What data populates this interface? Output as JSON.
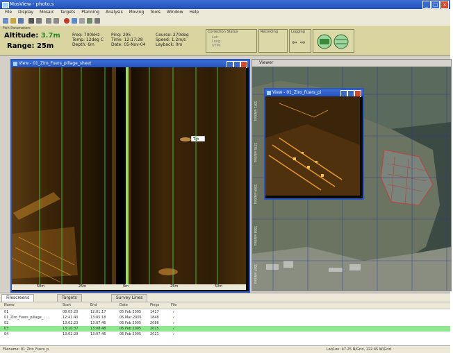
{
  "app": {
    "title": "MosView - photo.s"
  },
  "menu": {
    "items": [
      "File",
      "Display",
      "Mosaic",
      "Targets",
      "Planning",
      "Analysis",
      "Moving",
      "Tools",
      "Window",
      "Help"
    ]
  },
  "params": {
    "panel_label": "Fish Parameters",
    "altitude_label": "Altitude:",
    "altitude_value": "3.7m",
    "range_label": "Range:",
    "range_value": "25m",
    "col1": "Freq: 700kHz\nTemp: 12deg C\nDepth: 6m",
    "col2": "Ping: 295\nTime: 12:17:28\nDate: 05-Nov-04",
    "col3": "Course: 270deg\nSpeed: 1.2m/s\nLayback: 0m",
    "group1_label": "Correction Status",
    "group1_text": "Lat:\nLong:\nUTM:",
    "group2_label": "Recording",
    "group3_label": "Logging"
  },
  "sonar_window": {
    "title": "View - 01_Ziro_Fuers_pillage_sheet",
    "target_label": "Tgt",
    "range_ticks": [
      "50m",
      "25m",
      "0m",
      "25m",
      "50m"
    ]
  },
  "map_window": {
    "title": "Viewer",
    "coord_labels": [
      "5571 mN/Grid",
      "5570 mN/Grid",
      "5569 mN/Grid",
      "5568 mN/Grid",
      "5567 mN/Grid"
    ],
    "inset_title": "View - 01_Ziro_Fuers_pi"
  },
  "bottom": {
    "tabs": [
      "Filescreens",
      "Targets",
      "Survey Lines"
    ],
    "headers": [
      "Name",
      "Start",
      "End",
      "Date",
      "Pings",
      "File"
    ],
    "rows": [
      {
        "name": "01",
        "start": "08:05:20",
        "end": "12:01:17",
        "date": "05 Feb 2005",
        "pings": "1417",
        "file": "✓"
      },
      {
        "name": "01_Ziro_Fuers_pillage_...",
        "start": "12:41:40",
        "end": "13:05:18",
        "date": "06 Mar 2005",
        "pings": "1848",
        "file": "✓"
      },
      {
        "name": "02",
        "start": "13:02:23",
        "end": "13:07:46",
        "date": "06 Feb 2005",
        "pings": "2086",
        "file": "✓"
      },
      {
        "name": "03",
        "start": "13:10:37",
        "end": "13:08:48",
        "date": "06 Feb 2005",
        "pings": "2015",
        "file": "✓"
      },
      {
        "name": "04",
        "start": "13:02:29",
        "end": "13:07:46",
        "date": "06 Feb 2005",
        "pings": "2021",
        "file": "✓"
      }
    ]
  },
  "status": {
    "left": "Filename: 01_Ziro_Fuers_p",
    "right": "Lat/Lon: 47.25 N/Grid, 122.45 W/Grid"
  }
}
